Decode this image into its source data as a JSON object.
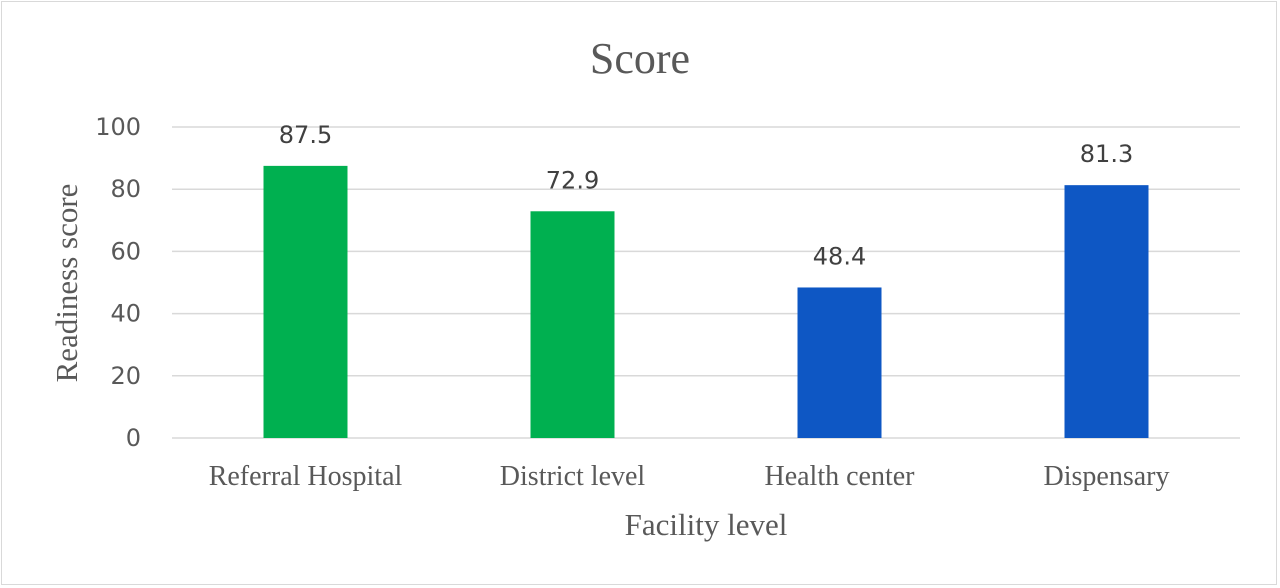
{
  "chart_data": {
    "type": "bar",
    "title": "Score",
    "xlabel": "Facility level",
    "ylabel": "Readiness score",
    "categories": [
      "Referral Hospital",
      "District level",
      "Health center",
      "Dispensary"
    ],
    "values": [
      87.5,
      72.9,
      48.4,
      81.3
    ],
    "value_labels": [
      "87.5",
      "72.9",
      "48.4",
      "81.3"
    ],
    "bar_colors": [
      "#00b050",
      "#00b050",
      "#0e57c4",
      "#0e57c4"
    ],
    "ylim": [
      0,
      100
    ],
    "yticks": [
      0,
      20,
      40,
      60,
      80,
      100
    ],
    "ytick_labels": [
      "0",
      "20",
      "40",
      "60",
      "80",
      "100"
    ],
    "grid": true,
    "legend": "none"
  }
}
